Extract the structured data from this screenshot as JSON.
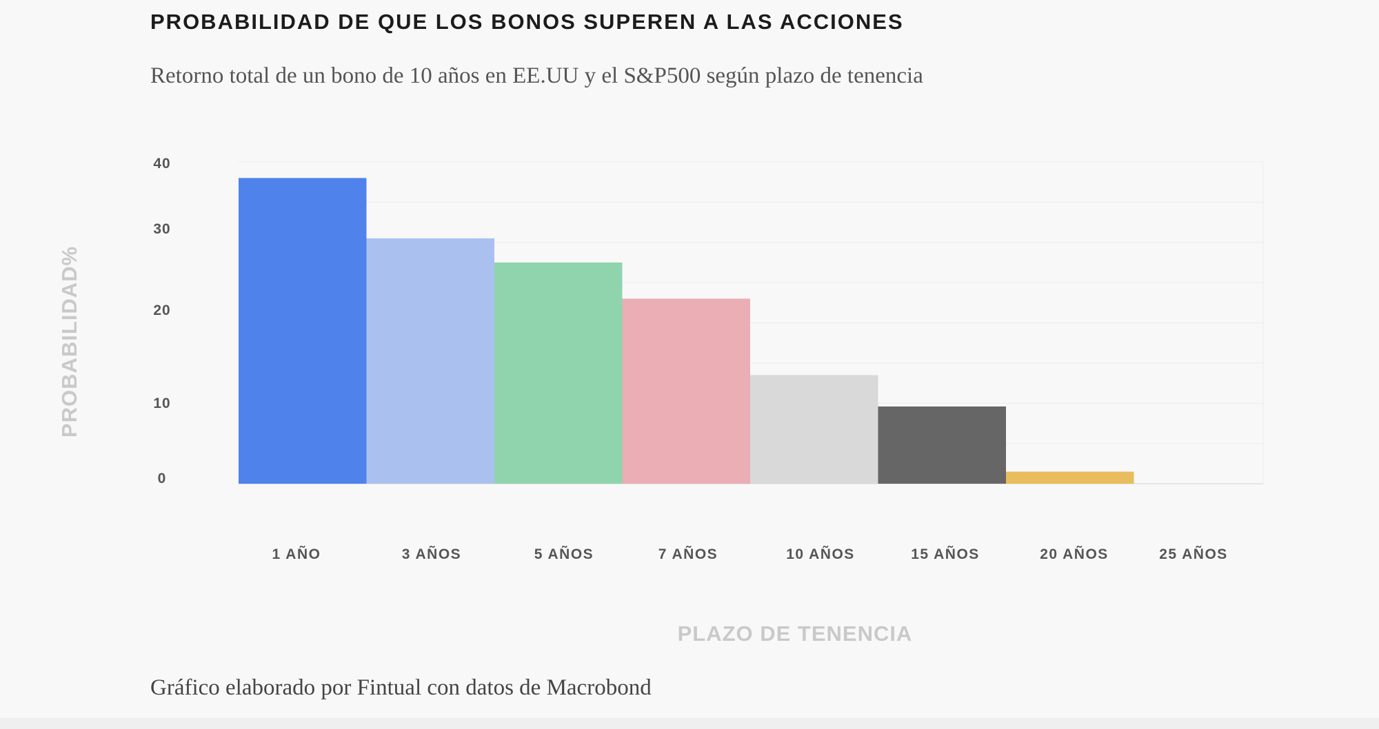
{
  "chart_data": {
    "type": "bar",
    "title": "PROBABILIDAD DE QUE LOS BONOS SUPEREN A LAS ACCIONES",
    "subtitle": "Retorno total de un bono de 10 años en EE.UU y el S&P500 según plazo de tenencia",
    "xlabel": "PLAZO DE TENENCIA",
    "ylabel": "PROBABILIDAD%",
    "categories": [
      "1 AÑO",
      "3 AÑOS",
      "5 AÑOS",
      "7 AÑOS",
      "10 AÑOS",
      "15 AÑOS",
      "20 AÑOS",
      "25 AÑOS"
    ],
    "values": [
      38,
      30.5,
      27.5,
      23,
      13.5,
      9.6,
      1.5,
      0
    ],
    "colors": [
      "#5082ec",
      "#aac1f0",
      "#90d4ae",
      "#eaaeb4",
      "#d9d9d9",
      "#666666",
      "#e9bd5d",
      "#e0e0e0"
    ],
    "ylim": [
      0,
      40
    ],
    "yticks": [
      0,
      10,
      20,
      30,
      40
    ],
    "grid": true,
    "legend": "none"
  },
  "caption": "Gráfico elaborado por Fintual con datos de Macrobond"
}
